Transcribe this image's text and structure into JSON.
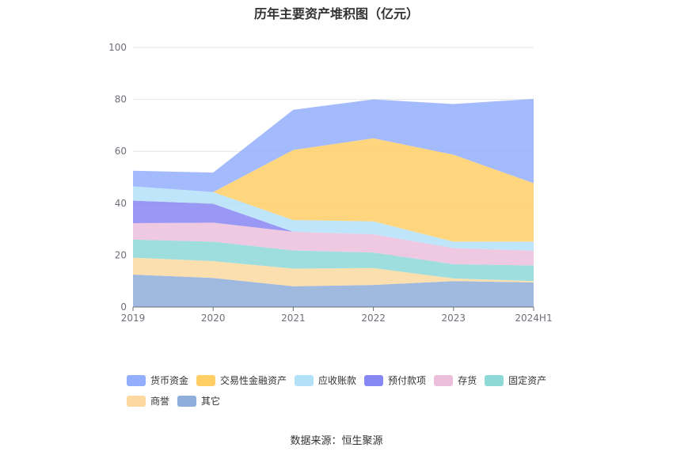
{
  "title": "历年主要资产堆积图（亿元）",
  "source_label": "数据来源：恒生聚源",
  "chart_data": {
    "type": "area",
    "stacked": true,
    "categories": [
      "2019",
      "2020",
      "2021",
      "2022",
      "2023",
      "2024H1"
    ],
    "ylim": [
      0,
      100
    ],
    "yticks": [
      0,
      20,
      40,
      60,
      80,
      100
    ],
    "grid": true,
    "legend_position": "bottom",
    "series": [
      {
        "name": "其它",
        "color": "#8faed9",
        "values": [
          12.5,
          11.2,
          8.0,
          8.5,
          10.0,
          9.5
        ]
      },
      {
        "name": "商誉",
        "color": "#fcd9a0",
        "values": [
          6.5,
          6.5,
          6.8,
          6.5,
          1.0,
          0.5
        ]
      },
      {
        "name": "固定资产",
        "color": "#8ed8d8",
        "values": [
          7.0,
          7.5,
          7.0,
          6.0,
          5.5,
          6.0
        ]
      },
      {
        "name": "存货",
        "color": "#ebbfdc",
        "values": [
          6.3,
          7.3,
          7.2,
          7.0,
          6.2,
          5.7
        ]
      },
      {
        "name": "预付款项",
        "color": "#8787f3",
        "values": [
          8.7,
          7.3,
          0.0,
          0.0,
          0.0,
          0.0
        ]
      },
      {
        "name": "应收账款",
        "color": "#b3e1f8",
        "values": [
          5.5,
          4.5,
          4.5,
          5.0,
          2.5,
          3.5
        ]
      },
      {
        "name": "交易性金融资产",
        "color": "#ffcf66",
        "values": [
          0.0,
          0.0,
          27.0,
          32.0,
          33.5,
          22.5
        ]
      },
      {
        "name": "货币资金",
        "color": "#93aefc",
        "values": [
          6.0,
          7.5,
          15.5,
          15.0,
          19.5,
          32.5
        ]
      }
    ]
  },
  "legend_order": [
    "货币资金",
    "交易性金融资产",
    "应收账款",
    "预付款项",
    "存货",
    "固定资产",
    "商誉",
    "其它"
  ]
}
